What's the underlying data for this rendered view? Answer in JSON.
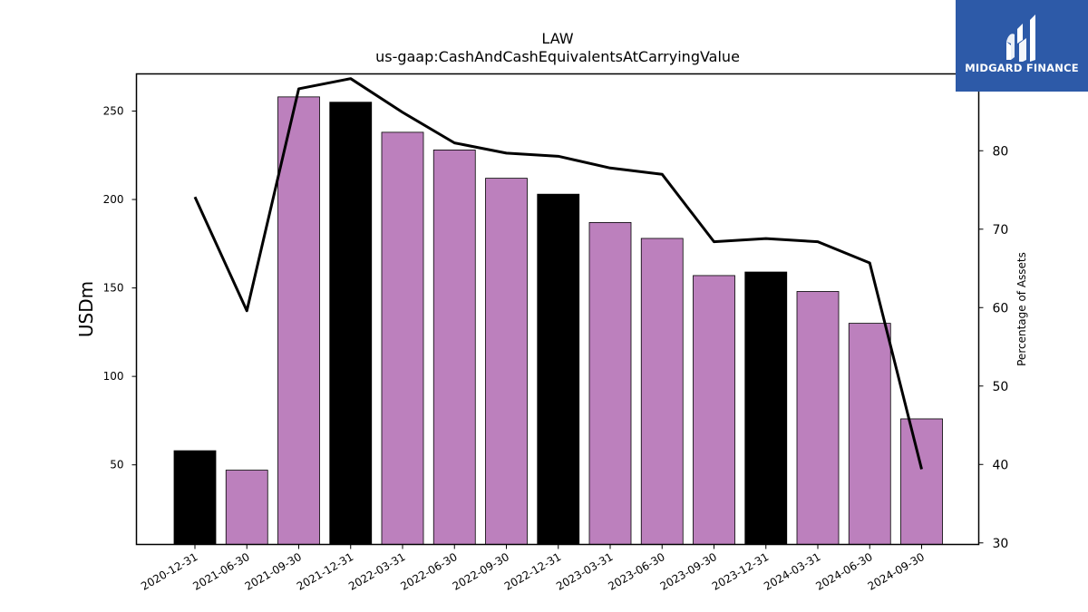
{
  "brand": {
    "name": "MIDGARD FINANCE",
    "color": "#2d5aa8"
  },
  "chart_data": {
    "type": "bar",
    "title": "LAW",
    "subtitle": "us-gaap:CashAndCashEquivalentsAtCarryingValue",
    "ylabel": "USDm",
    "y2label": "Percentage of Assets",
    "ylim": [
      5,
      271
    ],
    "y2lim": [
      29.8,
      89.8
    ],
    "yticks": [
      50,
      100,
      150,
      200,
      250
    ],
    "y2ticks": [
      30,
      40,
      50,
      60,
      70,
      80
    ],
    "categories": [
      "2020-12-31",
      "2021-06-30",
      "2021-09-30",
      "2021-12-31",
      "2022-03-31",
      "2022-06-30",
      "2022-09-30",
      "2022-12-31",
      "2023-03-31",
      "2023-06-30",
      "2023-09-30",
      "2023-12-31",
      "2024-03-31",
      "2024-06-30",
      "2024-09-30"
    ],
    "series": [
      {
        "values": [
          58,
          47,
          258,
          255,
          238,
          228,
          212,
          203,
          187,
          178,
          157,
          159,
          148,
          130,
          76
        ]
      },
      {
        "type": "line",
        "axis": "right",
        "values": [
          74.1,
          59.6,
          87.9,
          89.2,
          84.9,
          81.0,
          79.7,
          79.3,
          77.8,
          77.0,
          68.4,
          68.8,
          68.4,
          65.7,
          39.4
        ]
      }
    ],
    "bar_colors": [
      "#000000",
      "#bc80bd",
      "#bc80bd",
      "#000000",
      "#bc80bd",
      "#bc80bd",
      "#bc80bd",
      "#000000",
      "#bc80bd",
      "#bc80bd",
      "#bc80bd",
      "#000000",
      "#bc80bd",
      "#bc80bd",
      "#bc80bd"
    ],
    "line_color": "#000000",
    "grid": false
  }
}
